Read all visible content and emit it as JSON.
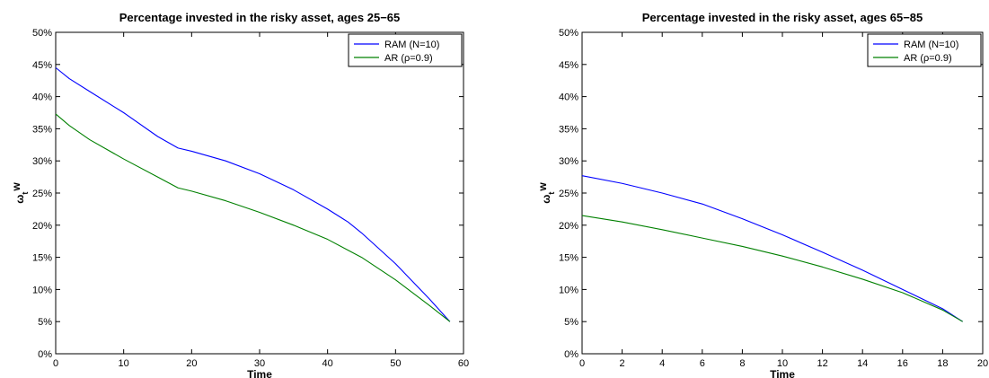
{
  "chart_data": [
    {
      "type": "line",
      "title": "Percentage invested in the risky asset, ages 25−65",
      "xlabel": "Time",
      "ylabel": "ω",
      "ylabel_sub": "t",
      "ylabel_sup": "w",
      "xlim": [
        0,
        60
      ],
      "ylim": [
        0,
        50
      ],
      "xticks": [
        0,
        10,
        20,
        30,
        40,
        50,
        60
      ],
      "yticks": [
        0,
        5,
        10,
        15,
        20,
        25,
        30,
        35,
        40,
        45,
        50
      ],
      "ytick_labels": [
        "0%",
        "5%",
        "10%",
        "15%",
        "20%",
        "25%",
        "30%",
        "35%",
        "40%",
        "45%",
        "50%"
      ],
      "xtick_labels": [
        "0",
        "10",
        "20",
        "30",
        "40",
        "50",
        "60"
      ],
      "grid": false,
      "legend_position": "top-right",
      "series": [
        {
          "name": "RAM (N=10)",
          "color": "#0000ff",
          "x": [
            0,
            2,
            5,
            10,
            15,
            18,
            20,
            25,
            30,
            35,
            40,
            43,
            45,
            50,
            55,
            58
          ],
          "y": [
            44.5,
            42.8,
            40.8,
            37.5,
            33.8,
            32.0,
            31.5,
            30.0,
            28.0,
            25.5,
            22.5,
            20.5,
            18.8,
            14.0,
            8.5,
            5.0
          ]
        },
        {
          "name": "AR (ρ=0.9)",
          "color": "#008000",
          "x": [
            0,
            2,
            5,
            10,
            15,
            18,
            20,
            25,
            30,
            35,
            40,
            45,
            50,
            55,
            58
          ],
          "y": [
            37.3,
            35.5,
            33.3,
            30.3,
            27.5,
            25.8,
            25.3,
            23.8,
            22.0,
            20.0,
            17.8,
            15.0,
            11.5,
            7.5,
            5.0
          ]
        }
      ]
    },
    {
      "type": "line",
      "title": "Percentage invested in the risky asset, ages 65−85",
      "xlabel": "Time",
      "ylabel": "ω",
      "ylabel_sub": "t",
      "ylabel_sup": "w",
      "xlim": [
        0,
        20
      ],
      "ylim": [
        0,
        50
      ],
      "xticks": [
        0,
        2,
        4,
        6,
        8,
        10,
        12,
        14,
        16,
        18,
        20
      ],
      "yticks": [
        0,
        5,
        10,
        15,
        20,
        25,
        30,
        35,
        40,
        45,
        50
      ],
      "ytick_labels": [
        "0%",
        "5%",
        "10%",
        "15%",
        "20%",
        "25%",
        "30%",
        "35%",
        "40%",
        "45%",
        "50%"
      ],
      "xtick_labels": [
        "0",
        "2",
        "4",
        "6",
        "8",
        "10",
        "12",
        "14",
        "16",
        "18",
        "20"
      ],
      "grid": false,
      "legend_position": "top-right",
      "series": [
        {
          "name": "RAM (N=10)",
          "color": "#0000ff",
          "x": [
            0,
            2,
            4,
            6,
            8,
            10,
            12,
            14,
            16,
            18,
            19
          ],
          "y": [
            27.7,
            26.5,
            25.0,
            23.3,
            21.0,
            18.5,
            15.8,
            13.0,
            10.0,
            7.0,
            5.0
          ]
        },
        {
          "name": "AR (ρ=0.9)",
          "color": "#008000",
          "x": [
            0,
            2,
            4,
            6,
            8,
            10,
            12,
            14,
            16,
            18,
            19
          ],
          "y": [
            21.5,
            20.5,
            19.3,
            18.0,
            16.7,
            15.2,
            13.5,
            11.6,
            9.5,
            6.8,
            5.0
          ]
        }
      ]
    }
  ]
}
